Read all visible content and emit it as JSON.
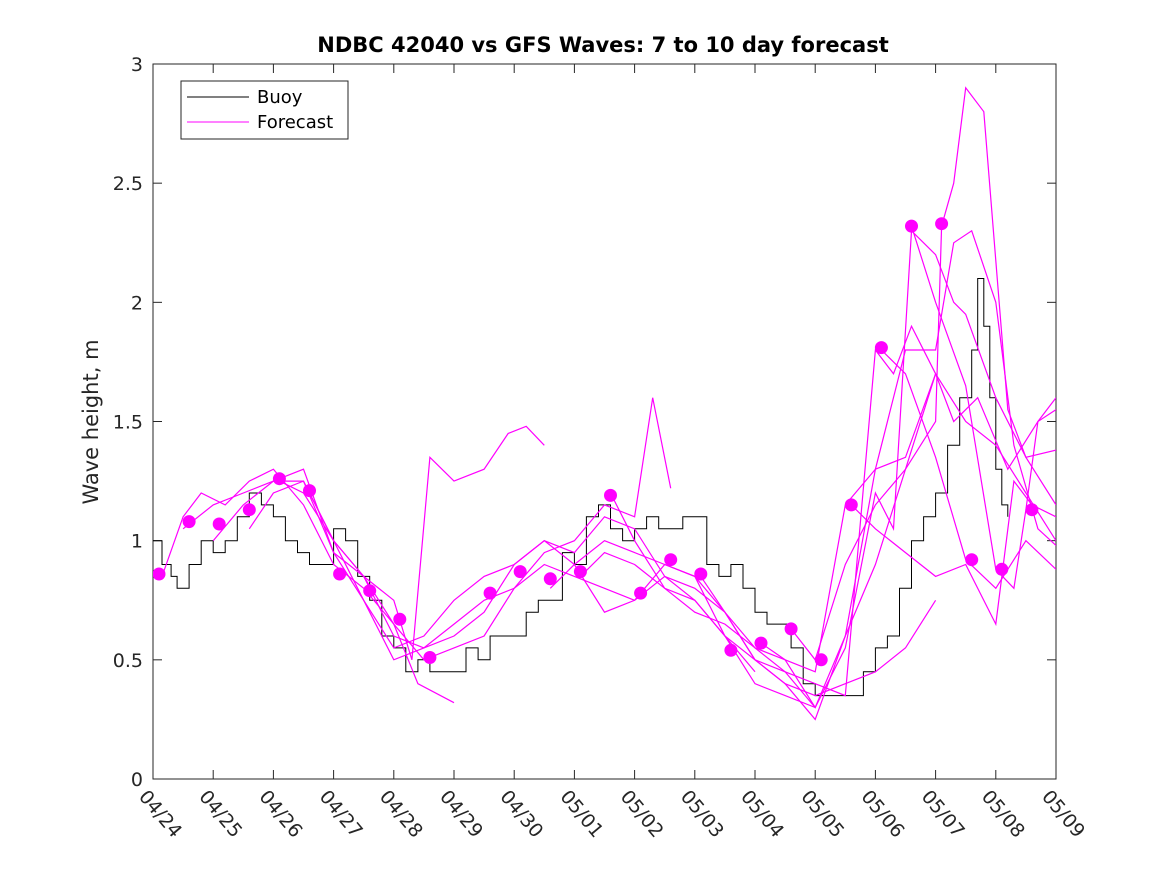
{
  "chart_data": {
    "type": "line",
    "title": "NDBC 42040 vs GFS Waves: 7 to 10 day forecast",
    "xlabel": "",
    "ylabel": "Wave height, m",
    "x_is_date": true,
    "xlim": [
      0,
      15
    ],
    "ylim": [
      0,
      3
    ],
    "x_ticks": [
      0,
      1,
      2,
      3,
      4,
      5,
      6,
      7,
      8,
      9,
      10,
      11,
      12,
      13,
      14,
      15
    ],
    "x_tick_labels": [
      "04/24",
      "04/25",
      "04/26",
      "04/27",
      "04/28",
      "04/29",
      "04/30",
      "05/01",
      "05/02",
      "05/03",
      "05/04",
      "05/05",
      "05/06",
      "05/07",
      "05/08",
      "05/09"
    ],
    "y_ticks": [
      0,
      0.5,
      1,
      1.5,
      2,
      2.5,
      3
    ],
    "y_tick_labels": [
      "0",
      "0.5",
      "1",
      "1.5",
      "2",
      "2.5",
      "3"
    ],
    "grid": false,
    "legend_position": "top-left",
    "colors": {
      "buoy": "#000000",
      "forecast": "#ff00ff"
    },
    "buoy": {
      "name": "Buoy",
      "x": [
        0,
        0.15,
        0.3,
        0.4,
        0.6,
        0.8,
        1.0,
        1.2,
        1.4,
        1.6,
        1.8,
        2.0,
        2.2,
        2.4,
        2.6,
        2.8,
        3.0,
        3.2,
        3.4,
        3.6,
        3.8,
        4.0,
        4.2,
        4.4,
        4.6,
        4.8,
        5.0,
        5.2,
        5.4,
        5.6,
        5.8,
        6.0,
        6.2,
        6.4,
        6.6,
        6.8,
        7.0,
        7.2,
        7.4,
        7.6,
        7.8,
        8.0,
        8.2,
        8.4,
        8.6,
        8.8,
        9.0,
        9.2,
        9.4,
        9.6,
        9.8,
        10.0,
        10.2,
        10.4,
        10.6,
        10.8,
        11.0,
        11.2,
        11.4,
        11.6,
        11.8,
        12.0,
        12.2,
        12.4,
        12.6,
        12.8,
        13.0,
        13.2,
        13.4,
        13.6,
        13.7,
        13.8,
        13.9,
        14.0,
        14.1,
        14.2
      ],
      "y": [
        1.0,
        0.9,
        0.85,
        0.8,
        0.9,
        1.0,
        0.95,
        1.0,
        1.1,
        1.2,
        1.15,
        1.1,
        1.0,
        0.95,
        0.9,
        0.9,
        1.05,
        1.0,
        0.85,
        0.75,
        0.6,
        0.55,
        0.45,
        0.5,
        0.45,
        0.45,
        0.45,
        0.55,
        0.5,
        0.6,
        0.6,
        0.6,
        0.7,
        0.75,
        0.75,
        0.95,
        0.9,
        1.1,
        1.15,
        1.05,
        1.0,
        1.05,
        1.1,
        1.05,
        1.05,
        1.1,
        1.1,
        0.9,
        0.85,
        0.9,
        0.8,
        0.7,
        0.65,
        0.65,
        0.55,
        0.4,
        0.35,
        0.35,
        0.35,
        0.35,
        0.45,
        0.55,
        0.6,
        0.8,
        1.0,
        1.1,
        1.2,
        1.4,
        1.6,
        1.8,
        2.1,
        1.9,
        1.6,
        1.3,
        1.15,
        1.1
      ]
    },
    "forecast": {
      "name": "Forecast",
      "series": [
        {
          "x": [
            0.15,
            0.5,
            0.8,
            1.2,
            1.6,
            2.0,
            2.5,
            3.0,
            3.5,
            4.0,
            4.4,
            5.0
          ],
          "y": [
            0.85,
            1.1,
            1.2,
            1.15,
            1.25,
            1.3,
            1.15,
            0.9,
            0.8,
            0.65,
            0.4,
            0.32
          ]
        },
        {
          "x": [
            0.5,
            1.0,
            1.5,
            2.0,
            2.5,
            3.0,
            3.5,
            4.0,
            4.3,
            4.6,
            5.0,
            5.5,
            5.9,
            6.2,
            6.5
          ],
          "y": [
            1.05,
            1.15,
            1.2,
            1.25,
            1.3,
            0.95,
            0.85,
            0.75,
            0.5,
            1.35,
            1.25,
            1.3,
            1.45,
            1.48,
            1.4
          ]
        },
        {
          "x": [
            1.0,
            1.5,
            2.0,
            2.5,
            3.0,
            3.5,
            4.0,
            4.5,
            5.0,
            5.5,
            6.0,
            6.5,
            7.0,
            7.5,
            8.0,
            8.3,
            8.6
          ],
          "y": [
            1.0,
            1.15,
            1.25,
            1.25,
            1.0,
            0.85,
            0.6,
            0.55,
            0.65,
            0.75,
            0.8,
            0.95,
            1.0,
            1.15,
            1.1,
            1.6,
            1.22
          ]
        },
        {
          "x": [
            1.6,
            2.0,
            2.5,
            3.0,
            3.5,
            4.0,
            4.5,
            5.0,
            5.5,
            6.0,
            6.5,
            7.0,
            7.5,
            8.0,
            8.5,
            9.0,
            9.5,
            10.0
          ],
          "y": [
            1.05,
            1.2,
            1.25,
            0.95,
            0.75,
            0.55,
            0.6,
            0.75,
            0.85,
            0.9,
            1.0,
            0.95,
            1.1,
            1.05,
            0.85,
            0.75,
            0.6,
            0.45
          ]
        },
        {
          "x": [
            2.1,
            2.5,
            3.0,
            3.5,
            4.0,
            4.5,
            5.0,
            5.5,
            6.0,
            6.5,
            7.0,
            7.5,
            8.0,
            8.5,
            9.0,
            9.5,
            10.0,
            10.5,
            11.0
          ],
          "y": [
            1.25,
            1.2,
            1.0,
            0.75,
            0.5,
            0.55,
            0.6,
            0.7,
            0.9,
            1.0,
            0.9,
            0.7,
            0.75,
            0.9,
            0.85,
            0.6,
            0.4,
            0.35,
            0.3
          ]
        },
        {
          "x": [
            2.6,
            3.0,
            3.5,
            4.0,
            4.5,
            5.0,
            5.5,
            6.0,
            6.5,
            7.0,
            7.5,
            8.0,
            8.5,
            9.0,
            9.5,
            10.0,
            10.5,
            11.0,
            11.5,
            12.0,
            12.5,
            13.0
          ],
          "y": [
            1.2,
            1.0,
            0.85,
            0.65,
            0.5,
            0.55,
            0.6,
            0.8,
            0.9,
            0.85,
            0.8,
            0.75,
            0.85,
            0.8,
            0.7,
            0.5,
            0.4,
            0.35,
            0.4,
            0.45,
            0.55,
            0.75
          ]
        },
        {
          "x": [
            6.6,
            7.0,
            7.5,
            8.0,
            8.5,
            9.0,
            9.5,
            10.0,
            10.5,
            11.0,
            11.5,
            12.0,
            12.5,
            13.0
          ],
          "y": [
            0.8,
            0.9,
            1.0,
            0.95,
            0.9,
            0.85,
            0.7,
            0.5,
            0.4,
            0.25,
            0.6,
            0.9,
            1.3,
            1.7
          ]
        },
        {
          "x": [
            7.1,
            7.5,
            8.0,
            8.5,
            9.0,
            9.5,
            10.0,
            10.5,
            11.0,
            11.5,
            12.0,
            12.5,
            13.0,
            13.5,
            14.0,
            14.5,
            15.0
          ],
          "y": [
            0.85,
            0.95,
            0.9,
            0.8,
            0.7,
            0.65,
            0.55,
            0.5,
            0.3,
            0.6,
            1.3,
            1.35,
            1.7,
            1.5,
            1.4,
            1.2,
            1.0
          ]
        },
        {
          "x": [
            7.6,
            8.0,
            8.5,
            9.0,
            9.5,
            10.0,
            10.5,
            11.0,
            11.5,
            12.0,
            12.3,
            12.6,
            13.0,
            13.3,
            13.7,
            14.2,
            14.7,
            15.0
          ],
          "y": [
            1.2,
            1.0,
            0.8,
            0.75,
            0.6,
            0.5,
            0.45,
            0.4,
            0.35,
            1.8,
            1.7,
            1.9,
            1.7,
            1.5,
            1.6,
            1.3,
            1.5,
            1.55
          ]
        },
        {
          "x": [
            9.1,
            9.5,
            10.0,
            10.5,
            11.0,
            11.5,
            12.0,
            12.3,
            12.6,
            13.0,
            13.3,
            13.5,
            14.0,
            14.5,
            15.0
          ],
          "y": [
            0.85,
            0.7,
            0.55,
            0.45,
            0.3,
            0.55,
            1.2,
            1.05,
            2.3,
            2.2,
            2.0,
            1.95,
            1.6,
            1.35,
            1.38
          ]
        },
        {
          "x": [
            10.1,
            10.5,
            11.0,
            11.5,
            12.0,
            12.5,
            13.0,
            13.3,
            13.6,
            14.0,
            14.3,
            14.7,
            15.0
          ],
          "y": [
            0.57,
            0.5,
            0.45,
            1.15,
            1.3,
            1.8,
            1.8,
            2.25,
            2.3,
            2.0,
            1.4,
            1.05,
            0.98
          ]
        },
        {
          "x": [
            10.6,
            11.0,
            11.5,
            12.0,
            12.5,
            13.0,
            13.1,
            13.3,
            13.5,
            13.8,
            14.2,
            14.5,
            15.0
          ],
          "y": [
            0.63,
            0.5,
            0.9,
            1.15,
            1.3,
            1.5,
            2.32,
            2.5,
            2.9,
            2.8,
            1.55,
            1.35,
            1.15
          ]
        },
        {
          "x": [
            11.6,
            12.0,
            12.5,
            13.0,
            13.5,
            14.0,
            14.3,
            14.6,
            15.0
          ],
          "y": [
            1.15,
            1.05,
            0.95,
            0.85,
            0.9,
            0.65,
            1.25,
            1.15,
            1.1
          ]
        },
        {
          "x": [
            12.1,
            12.5,
            13.0,
            13.5,
            14.0,
            14.5,
            15.0
          ],
          "y": [
            1.8,
            1.7,
            1.35,
            0.92,
            0.8,
            1.0,
            0.88
          ]
        },
        {
          "x": [
            12.6,
            13.0,
            13.5,
            14.0,
            14.3,
            14.5,
            14.7,
            15.0
          ],
          "y": [
            2.32,
            2.0,
            1.65,
            0.88,
            0.8,
            1.13,
            1.5,
            1.6
          ]
        }
      ],
      "markers": {
        "x": [
          0.1,
          0.6,
          1.1,
          1.6,
          2.1,
          2.6,
          3.1,
          3.6,
          4.1,
          4.6,
          5.6,
          6.1,
          6.6,
          7.1,
          7.6,
          8.1,
          8.6,
          9.1,
          9.6,
          10.1,
          10.6,
          11.1,
          11.6,
          12.1,
          12.6,
          13.1,
          13.6,
          14.1,
          14.6
        ],
        "y": [
          0.86,
          1.08,
          1.07,
          1.13,
          1.26,
          1.21,
          0.86,
          0.79,
          0.67,
          0.51,
          0.78,
          0.87,
          0.84,
          0.87,
          1.19,
          0.78,
          0.92,
          0.86,
          0.54,
          0.57,
          0.63,
          0.5,
          1.15,
          1.81,
          2.32,
          2.33,
          0.92,
          0.88,
          1.13
        ]
      }
    }
  }
}
